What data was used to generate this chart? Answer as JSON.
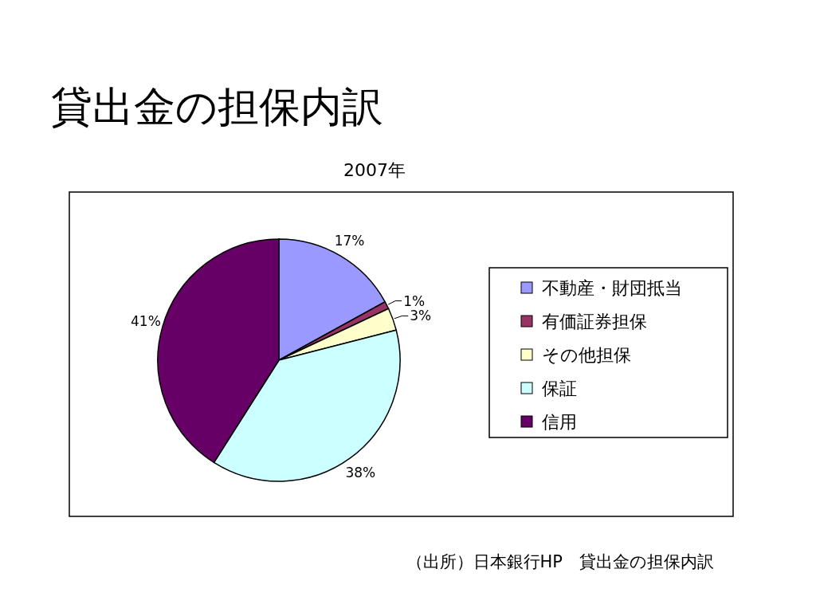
{
  "chart_data": {
    "type": "pie",
    "title": "貸出金の担保内訳",
    "subtitle": "2007年",
    "categories": [
      "不動産・財団抵当",
      "有価証券担保",
      "その他担保",
      "保証",
      "信用"
    ],
    "values": [
      17,
      1,
      3,
      38,
      41
    ],
    "colors": [
      "#9999ff",
      "#993366",
      "#ffffcc",
      "#ccffff",
      "#660066"
    ],
    "value_labels": [
      "17%",
      "1%",
      "3%",
      "38%",
      "41%"
    ],
    "legend": "right",
    "annotations": [
      "（出所）日本銀行HP　貸出金の担保内訳"
    ]
  }
}
